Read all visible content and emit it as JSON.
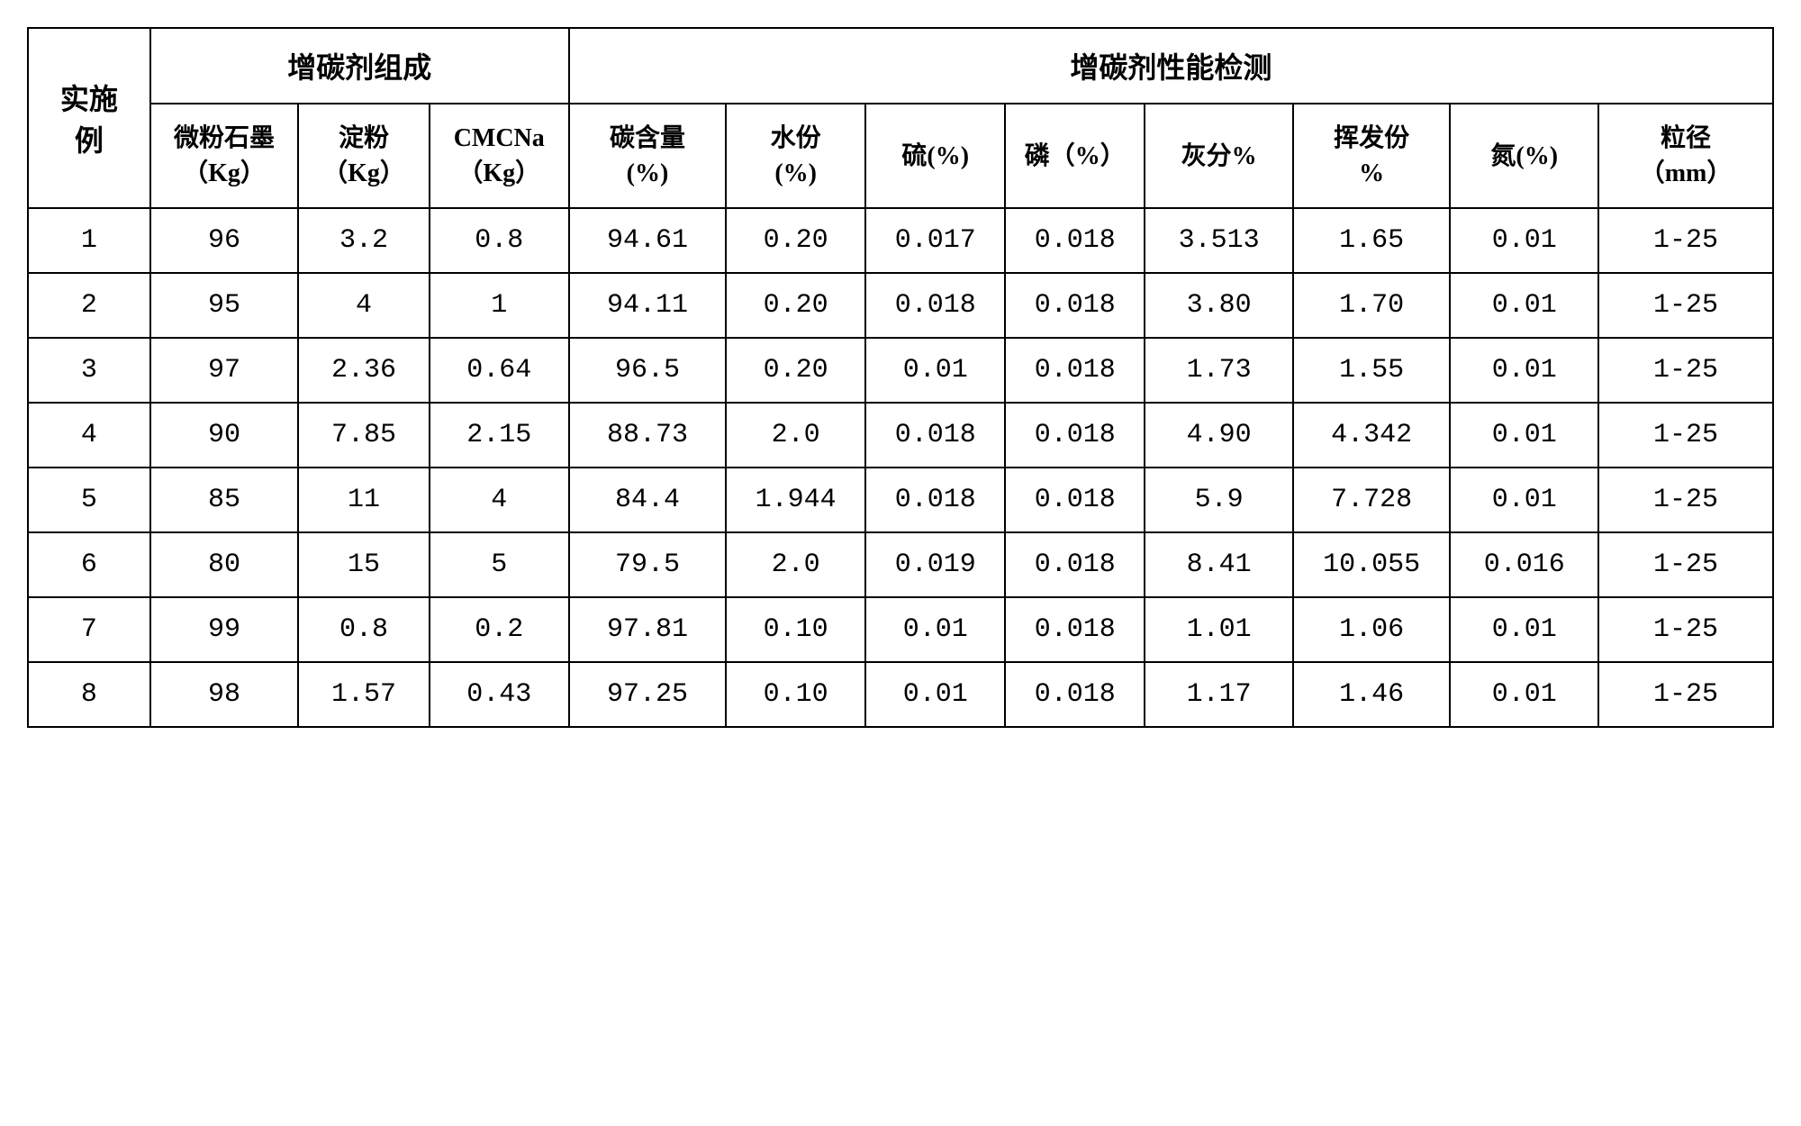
{
  "table": {
    "type": "table",
    "background_color": "#ffffff",
    "border_color": "#000000",
    "border_width": 2,
    "text_color": "#000000",
    "header_fontsize": 32,
    "subheader_fontsize": 28,
    "data_fontsize": 30,
    "row_header": "实施\n例",
    "group_headers": {
      "composition": "增碳剂组成",
      "performance": "增碳剂性能检测"
    },
    "sub_headers": {
      "graphite": "微粉石墨\n（Kg）",
      "starch": "淀粉\n（Kg）",
      "cmcna": "CMCNa\n（Kg）",
      "carbon": "碳含量\n(%)",
      "moisture": "水份\n(%)",
      "sulfur": "硫(%)",
      "phosphorus": "磷（%）",
      "ash": "灰分%",
      "volatile": "挥发份\n%",
      "nitrogen": "氮(%)",
      "particle": "粒径\n（mm）"
    },
    "rows": [
      {
        "id": "1",
        "graphite": "96",
        "starch": "3.2",
        "cmcna": "0.8",
        "carbon": "94.61",
        "moisture": "0.20",
        "sulfur": "0.017",
        "phosphorus": "0.018",
        "ash": "3.513",
        "volatile": "1.65",
        "nitrogen": "0.01",
        "particle": "1-25"
      },
      {
        "id": "2",
        "graphite": "95",
        "starch": "4",
        "cmcna": "1",
        "carbon": "94.11",
        "moisture": "0.20",
        "sulfur": "0.018",
        "phosphorus": "0.018",
        "ash": "3.80",
        "volatile": "1.70",
        "nitrogen": "0.01",
        "particle": "1-25"
      },
      {
        "id": "3",
        "graphite": "97",
        "starch": "2.36",
        "cmcna": "0.64",
        "carbon": "96.5",
        "moisture": "0.20",
        "sulfur": "0.01",
        "phosphorus": "0.018",
        "ash": "1.73",
        "volatile": "1.55",
        "nitrogen": "0.01",
        "particle": "1-25"
      },
      {
        "id": "4",
        "graphite": "90",
        "starch": "7.85",
        "cmcna": "2.15",
        "carbon": "88.73",
        "moisture": "2.0",
        "sulfur": "0.018",
        "phosphorus": "0.018",
        "ash": "4.90",
        "volatile": "4.342",
        "nitrogen": "0.01",
        "particle": "1-25"
      },
      {
        "id": "5",
        "graphite": "85",
        "starch": "11",
        "cmcna": "4",
        "carbon": "84.4",
        "moisture": "1.944",
        "sulfur": "0.018",
        "phosphorus": "0.018",
        "ash": "5.9",
        "volatile": "7.728",
        "nitrogen": "0.01",
        "particle": "1-25"
      },
      {
        "id": "6",
        "graphite": "80",
        "starch": "15",
        "cmcna": "5",
        "carbon": "79.5",
        "moisture": "2.0",
        "sulfur": "0.019",
        "phosphorus": "0.018",
        "ash": "8.41",
        "volatile": "10.055",
        "nitrogen": "0.016",
        "particle": "1-25"
      },
      {
        "id": "7",
        "graphite": "99",
        "starch": "0.8",
        "cmcna": "0.2",
        "carbon": "97.81",
        "moisture": "0.10",
        "sulfur": "0.01",
        "phosphorus": "0.018",
        "ash": "1.01",
        "volatile": "1.06",
        "nitrogen": "0.01",
        "particle": "1-25"
      },
      {
        "id": "8",
        "graphite": "98",
        "starch": "1.57",
        "cmcna": "0.43",
        "carbon": "97.25",
        "moisture": "0.10",
        "sulfur": "0.01",
        "phosphorus": "0.018",
        "ash": "1.17",
        "volatile": "1.46",
        "nitrogen": "0.01",
        "particle": "1-25"
      }
    ],
    "column_widths": {
      "example": "7%",
      "composition_cols": "8%",
      "performance_cols": "8.6%"
    }
  }
}
